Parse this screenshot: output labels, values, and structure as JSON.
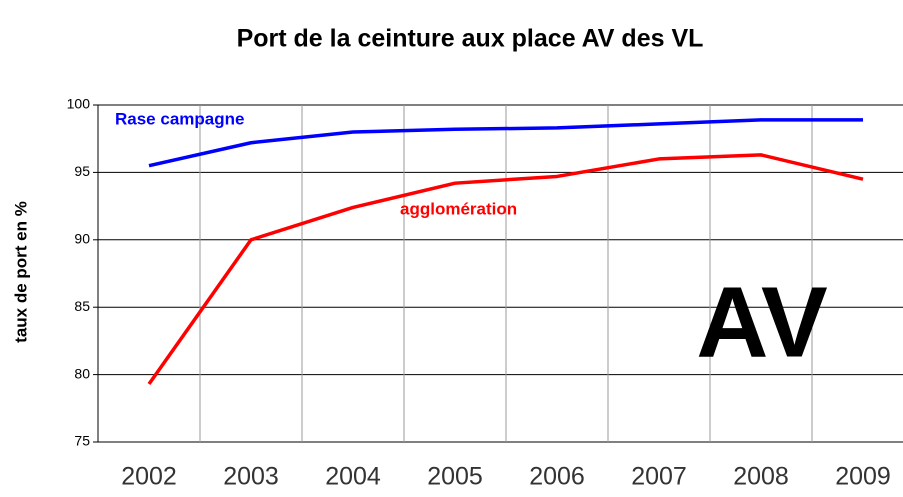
{
  "chart_data": {
    "type": "line",
    "title": "Port de la ceinture aux place AV des VL",
    "y_label": "taux de port en %",
    "annotation": "AV",
    "categories": [
      "2002",
      "2003",
      "2004",
      "2005",
      "2006",
      "2007",
      "2008",
      "2009"
    ],
    "series": [
      {
        "name": "Rase campagne",
        "color": "#0000ff",
        "values": [
          95.5,
          97.2,
          98.0,
          98.2,
          98.3,
          98.6,
          98.9,
          98.9
        ]
      },
      {
        "name": "agglomération",
        "color": "#ff0000",
        "values": [
          79.3,
          90.0,
          92.4,
          94.2,
          94.7,
          96.0,
          96.3,
          94.5
        ]
      }
    ],
    "ylim": [
      75,
      100
    ],
    "yticks": [
      75,
      80,
      85,
      90,
      95,
      100
    ],
    "grid": true
  }
}
